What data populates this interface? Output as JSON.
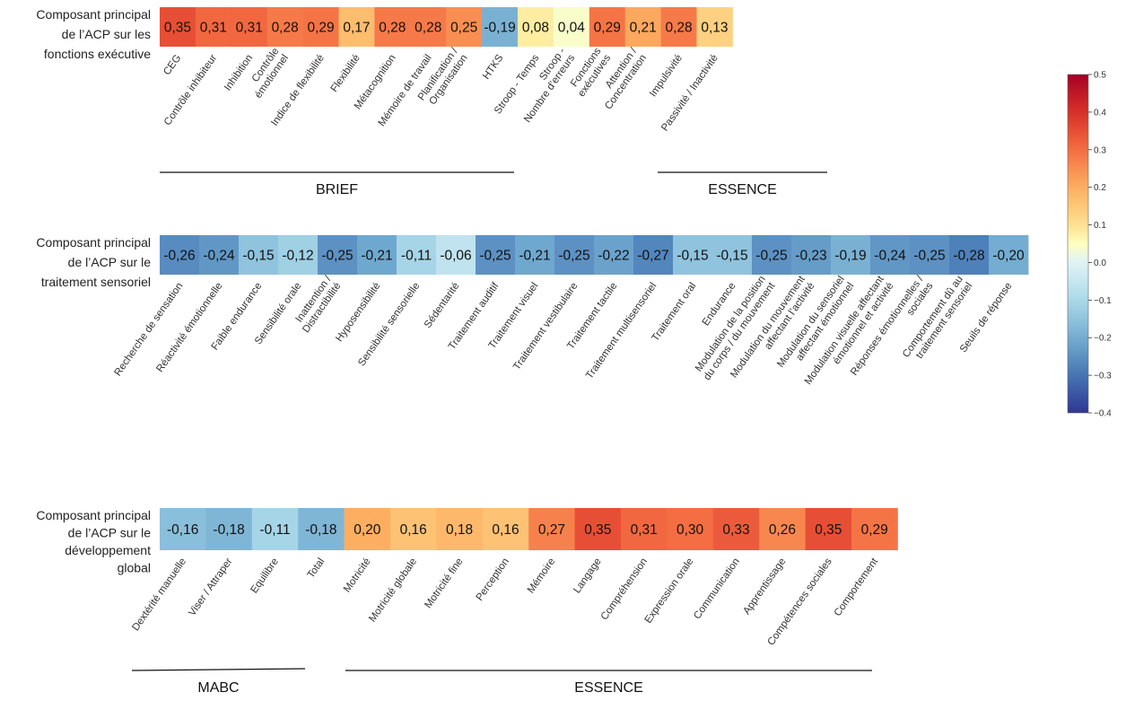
{
  "chart_data": {
    "type": "heatmap",
    "colorbar": {
      "range": [
        -0.4,
        0.5
      ],
      "ticks": [
        0.5,
        0.4,
        0.3,
        0.2,
        0.1,
        0.0,
        -0.1,
        -0.2,
        -0.3,
        -0.4
      ],
      "tick_labels": [
        "0.5",
        "0.4",
        "0.3",
        "0.2",
        "0.1",
        "0.0",
        "−0.1",
        "−0.2",
        "−0.3",
        "−0.4"
      ],
      "colormap": "RdYlBu_r"
    },
    "panels": [
      {
        "row_label_lines": [
          "Composant principal",
          "de l’ACP sur les",
          "fonctions exécutive"
        ],
        "categories": [
          "CEG",
          "Contrôle inhibiteur",
          "Inhibition",
          "Contrôle émotionnel",
          "Indice de flexibilité",
          "Flexibilité",
          "Métacognition",
          "Mémoire de travail",
          "Planification / Organisation",
          "HTKS",
          "Stroop - Temps",
          "Stroop - Nombre d’erreurs",
          "Fonctions exécutives",
          "Attention / Concentration",
          "Impulsivité",
          "Passivité / Inactivité"
        ],
        "tick_label_lines": [
          [
            "CEG"
          ],
          [
            "Contrôle inhibiteur"
          ],
          [
            "Inhibition"
          ],
          [
            "Contrôle",
            "émotionnel"
          ],
          [
            "Indice de flexibilité"
          ],
          [
            "Flexibilité"
          ],
          [
            "Métacognition"
          ],
          [
            "Mémoire de travail"
          ],
          [
            "Planification /",
            "Organisation"
          ],
          [
            "HTKS"
          ],
          [
            "Stroop - Temps"
          ],
          [
            "Stroop -",
            "Nombre d’erreurs"
          ],
          [
            "Fonctions",
            "exécutives"
          ],
          [
            "Attention /",
            "Concentration"
          ],
          [
            "Impulsivité"
          ],
          [
            "Passivité / Inactivité"
          ]
        ],
        "values": [
          0.35,
          0.31,
          0.31,
          0.28,
          0.29,
          0.17,
          0.28,
          0.28,
          0.25,
          -0.19,
          0.08,
          0.04,
          0.29,
          0.21,
          0.28,
          0.13
        ],
        "value_labels": [
          "0,35",
          "0,31",
          "0,31",
          "0,28",
          "0,29",
          "0,17",
          "0,28",
          "0,28",
          "0,25",
          "-0,19",
          "0,08",
          "0,04",
          "0,29",
          "0,21",
          "0,28",
          "0,13"
        ],
        "groups": [
          {
            "label": "BRIEF",
            "from": 0,
            "to": 8
          },
          {
            "label": "ESSENCE",
            "from": 12,
            "to": 15
          }
        ]
      },
      {
        "row_label_lines": [
          "Composant principal",
          "de l’ACP sur le",
          "traitement sensoriel"
        ],
        "categories": [
          "Recherche de sensation",
          "Réactivité émotionnelle",
          "Faible endurance",
          "Sensibilité orale",
          "Inattention / Distractibilité",
          "Hyposensibilité",
          "Sensibilité sensorielle",
          "Sédentarité",
          "Traitement auditif",
          "Traitement visuel",
          "Traitement vestibulaire",
          "Traitement tactile",
          "Traitement multisensoriel",
          "Traitement oral",
          "Endurance",
          "Modulation de la position du corps / du mouvement",
          "Modulation du mouvement affectant l’activité",
          "Modulation du sensoriel affectant émotionnel",
          "Modulation visuelle affectant émotionnel et activité",
          "Réponses émotionnelles / sociales",
          "Comportement dû au traitement sensoriel",
          "Seuils de réponse"
        ],
        "tick_label_lines": [
          [
            "Recherche de sensation"
          ],
          [
            "Réactivité émotionnelle"
          ],
          [
            "Faible endurance"
          ],
          [
            "Sensibilité orale"
          ],
          [
            "Inattention /",
            "Distractibilité"
          ],
          [
            "Hyposensibilité"
          ],
          [
            "Sensibilité sensorielle"
          ],
          [
            "Sédentarité"
          ],
          [
            "Traitement auditif"
          ],
          [
            "Traitement visuel"
          ],
          [
            "Traitement vestibulaire"
          ],
          [
            "Traitement tactile"
          ],
          [
            "Traitement multisensoriel"
          ],
          [
            "Traitement oral"
          ],
          [
            "Endurance"
          ],
          [
            "Modulation de la position",
            "du corps / du mouvement"
          ],
          [
            "Modulation du mouvement",
            "affectant l’activité"
          ],
          [
            "Modulation du sensoriel",
            "affectant émotionnel"
          ],
          [
            "Modulation visuelle affectant",
            "émotionnel et activité"
          ],
          [
            "Réponses émotionnelles /",
            "sociales"
          ],
          [
            "Comportement dû au",
            "traitement sensoriel"
          ],
          [
            "Seuils de réponse"
          ]
        ],
        "values": [
          -0.26,
          -0.24,
          -0.15,
          -0.12,
          -0.25,
          -0.21,
          -0.11,
          -0.06,
          -0.25,
          -0.21,
          -0.25,
          -0.22,
          -0.27,
          -0.15,
          -0.15,
          -0.25,
          -0.23,
          -0.19,
          -0.24,
          -0.25,
          -0.28,
          -0.2
        ],
        "value_labels": [
          "-0,26",
          "-0,24",
          "-0,15",
          "-0,12",
          "-0,25",
          "-0,21",
          "-0,11",
          "-0,06",
          "-0,25",
          "-0,21",
          "-0,25",
          "-0,22",
          "-0,27",
          "-0,15",
          "-0,15",
          "-0,25",
          "-0,23",
          "-0,19",
          "-0,24",
          "-0,25",
          "-0,28",
          "-0,20"
        ],
        "groups": []
      },
      {
        "row_label_lines": [
          "Composant principal",
          "de l’ACP sur le",
          "développement",
          "global"
        ],
        "categories": [
          "Dextérité manuelle",
          "Viser / Attraper",
          "Equilibre",
          "Total",
          "Motricité",
          "Motricité globale",
          "Motricité fine",
          "Perception",
          "Mémoire",
          "Langage",
          "Compréhension",
          "Expression orale",
          "Communication",
          "Apprentissage",
          "Compétences sociales",
          "Comportement"
        ],
        "tick_label_lines": [
          [
            "Dextérité manuelle"
          ],
          [
            "Viser / Attraper"
          ],
          [
            "Equilibre"
          ],
          [
            "Total"
          ],
          [
            "Motricité"
          ],
          [
            "Motricité globale"
          ],
          [
            "Motricité fine"
          ],
          [
            "Perception"
          ],
          [
            "Mémoire"
          ],
          [
            "Langage"
          ],
          [
            "Compréhension"
          ],
          [
            "Expression orale"
          ],
          [
            "Communication"
          ],
          [
            "Apprentissage"
          ],
          [
            "Compétences sociales"
          ],
          [
            "Comportement"
          ]
        ],
        "values": [
          -0.16,
          -0.18,
          -0.11,
          -0.18,
          0.2,
          0.16,
          0.18,
          0.16,
          0.27,
          0.35,
          0.31,
          0.3,
          0.33,
          0.26,
          0.35,
          0.29
        ],
        "value_labels": [
          "-0,16",
          "-0,18",
          "-0,11",
          "-0,18",
          "0,20",
          "0,16",
          "0,18",
          "0,16",
          "0,27",
          "0,35",
          "0,31",
          "0,30",
          "0,33",
          "0,26",
          "0,35",
          "0,29"
        ],
        "groups": [
          {
            "label": "MABC",
            "from": 0,
            "to": 3
          },
          {
            "label": "ESSENCE",
            "from": 4,
            "to": 15
          }
        ]
      }
    ]
  }
}
